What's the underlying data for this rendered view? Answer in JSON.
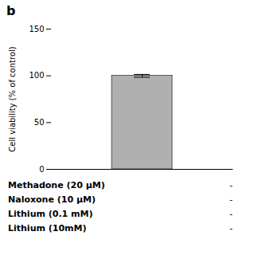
{
  "chart_data": {
    "type": "bar",
    "title": "b",
    "categories": [
      null
    ],
    "values": [
      100
    ],
    "errors": [
      1.5
    ],
    "color": "#b0b0b0",
    "ylabel": "Cell viability (% of control)",
    "ylim": [
      0,
      150
    ],
    "yticks": [
      0,
      50,
      100,
      150
    ],
    "grid": false,
    "tick_labels": "y",
    "annotations": [
      {
        "label": "Methadone (20 μM)",
        "text": "-"
      },
      {
        "label": "Naloxone (10 μM)",
        "text": "-"
      },
      {
        "label": "Lithium (0.1 mM)",
        "text": "-"
      },
      {
        "label": "Lithium (10mM)",
        "text": "-"
      }
    ]
  }
}
